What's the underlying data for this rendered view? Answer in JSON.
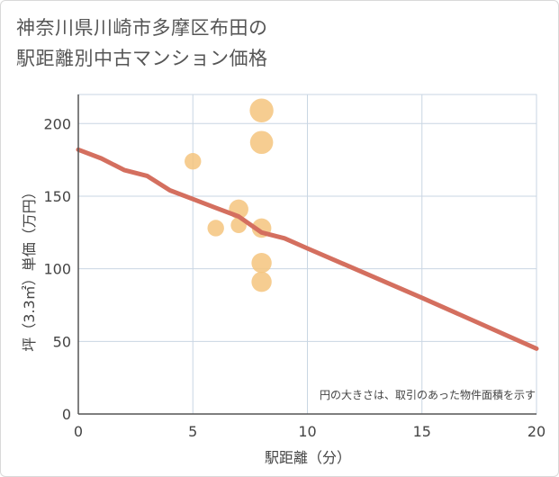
{
  "page": {
    "title_line1": "神奈川県川崎市多摩区布田の",
    "title_line2": "駅距離別中古マンション価格"
  },
  "chart_data": {
    "type": "scatter",
    "title": "神奈川県川崎市多摩区布田の駅距離別中古マンション価格",
    "xlabel": "駅距離（分）",
    "ylabel": "坪（3.3㎡）単価（万円）",
    "xlim": [
      0,
      20
    ],
    "ylim": [
      0,
      220
    ],
    "xticks": [
      0,
      5,
      10,
      15,
      20
    ],
    "yticks": [
      0,
      50,
      100,
      150,
      200
    ],
    "grid": true,
    "note": "円の大きさは、取引のあった物件面積を示す",
    "colors": {
      "bubble": "#f5c47e",
      "trend": "#d46f5f",
      "grid": "#c9d6e3",
      "axis": "#555555"
    },
    "points": [
      {
        "x": 5,
        "y": 174,
        "size": 0.4
      },
      {
        "x": 6,
        "y": 128,
        "size": 0.4
      },
      {
        "x": 7,
        "y": 141,
        "size": 0.6
      },
      {
        "x": 7,
        "y": 130,
        "size": 0.35
      },
      {
        "x": 8,
        "y": 209,
        "size": 0.9
      },
      {
        "x": 8,
        "y": 187,
        "size": 0.85
      },
      {
        "x": 8,
        "y": 128,
        "size": 0.6
      },
      {
        "x": 8,
        "y": 104,
        "size": 0.65
      },
      {
        "x": 8,
        "y": 91,
        "size": 0.65
      }
    ],
    "trend": [
      {
        "x": 0,
        "y": 182
      },
      {
        "x": 1,
        "y": 176
      },
      {
        "x": 2,
        "y": 168
      },
      {
        "x": 3,
        "y": 164
      },
      {
        "x": 4,
        "y": 154
      },
      {
        "x": 5,
        "y": 148
      },
      {
        "x": 6,
        "y": 142
      },
      {
        "x": 7,
        "y": 136
      },
      {
        "x": 8,
        "y": 125
      },
      {
        "x": 9,
        "y": 121
      },
      {
        "x": 10,
        "y": 114
      },
      {
        "x": 15,
        "y": 80
      },
      {
        "x": 20,
        "y": 45
      }
    ]
  }
}
